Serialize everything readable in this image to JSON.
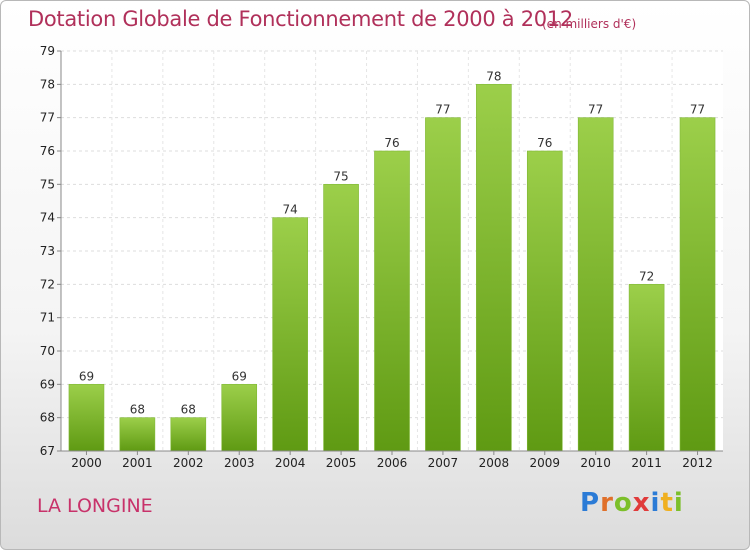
{
  "chart_data": {
    "type": "bar",
    "title": "Dotation Globale de Fonctionnement de 2000 à 2012",
    "subtitle": "(en milliers d'€)",
    "categories": [
      "2000",
      "2001",
      "2002",
      "2003",
      "2004",
      "2005",
      "2006",
      "2007",
      "2008",
      "2009",
      "2010",
      "2011",
      "2012"
    ],
    "values": [
      69,
      68,
      68,
      69,
      74,
      75,
      76,
      77,
      78,
      76,
      77,
      72,
      77
    ],
    "ylim": [
      67,
      79
    ],
    "yticks": [
      67,
      68,
      69,
      70,
      71,
      72,
      73,
      74,
      75,
      76,
      77,
      78,
      79
    ],
    "grid": true,
    "bar_color_top": "#9ccf4a",
    "bar_color_bottom": "#5f9a13"
  },
  "footer": {
    "commune": "LA LONGINE",
    "logo": {
      "letters": [
        "P",
        "r",
        "o",
        "x",
        "i",
        "t",
        "i"
      ],
      "colors": [
        "#2b7bd6",
        "#e0702a",
        "#7cbf2a",
        "#e03a3a",
        "#2b7bd6",
        "#f0b020",
        "#7cbf2a"
      ]
    }
  }
}
